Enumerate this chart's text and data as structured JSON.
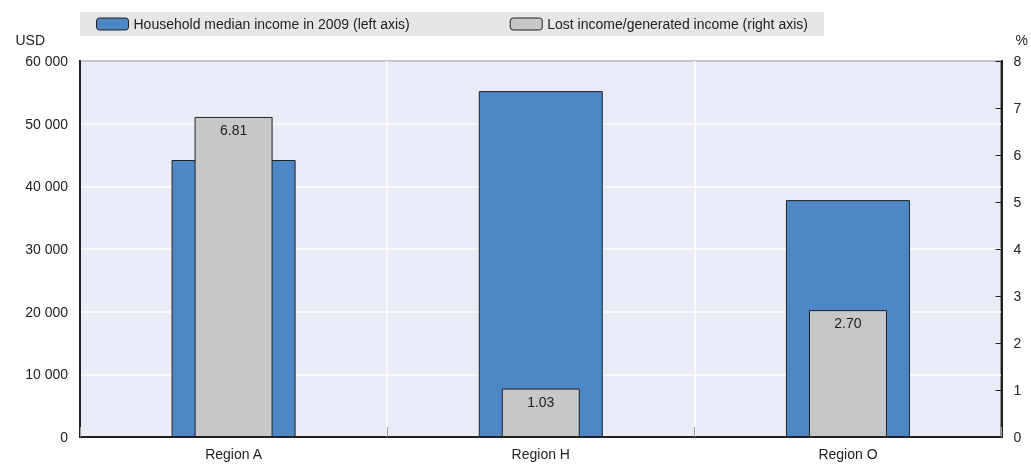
{
  "chart_data": {
    "type": "bar",
    "categories": [
      "Region A",
      "Region H",
      "Region O"
    ],
    "ylabel": "USD",
    "y2label": "%",
    "series": [
      {
        "name": "Household median income in 2009 (left axis)",
        "color": "#4e87c6",
        "values": [
          44200,
          55200,
          37800
        ]
      },
      {
        "name": "Lost income/generated income (right axis)",
        "color": "#c6c7c9",
        "values": [
          6.81,
          1.03,
          2.7
        ],
        "axis": "y2",
        "value_labels": [
          "6.81",
          "1.03",
          "2.70"
        ]
      }
    ],
    "ylim": [
      0,
      60000
    ],
    "yticks": [
      {
        "value": 0,
        "label": "0"
      },
      {
        "value": 10000,
        "label": "10 000"
      },
      {
        "value": 20000,
        "label": "20 000"
      },
      {
        "value": 30000,
        "label": "30 000"
      },
      {
        "value": 40000,
        "label": "40 000"
      },
      {
        "value": 50000,
        "label": "50 000"
      },
      {
        "value": 60000,
        "label": "60 000"
      }
    ],
    "y2lim": [
      0,
      8
    ],
    "y2ticks": [
      0,
      1,
      2,
      3,
      4,
      5,
      6,
      7,
      8
    ],
    "grid": true,
    "legend": "top"
  }
}
